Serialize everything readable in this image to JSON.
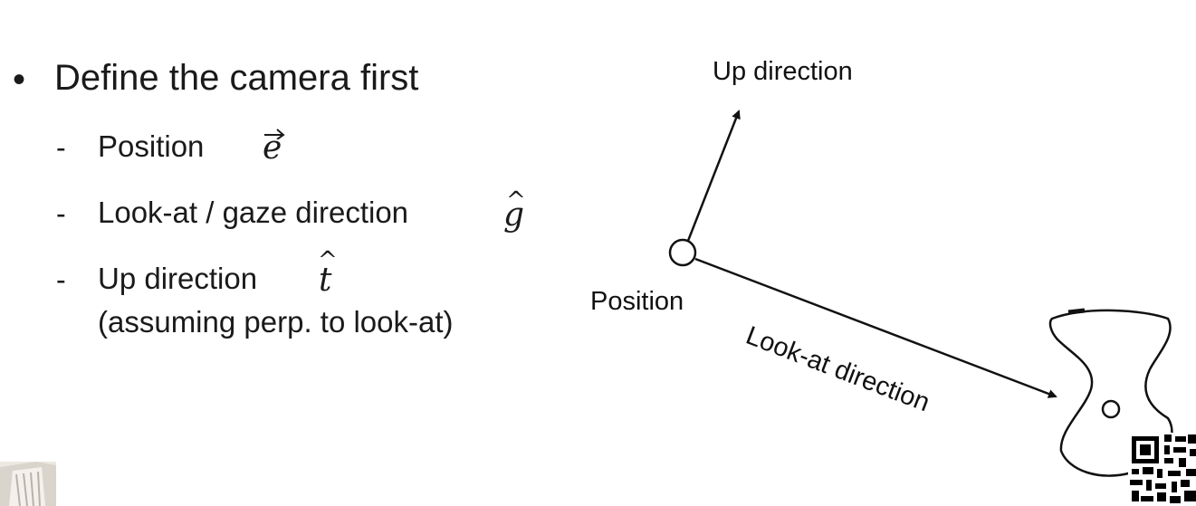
{
  "slide": {
    "main_point": "Define the camera first",
    "items": [
      {
        "label": "Position",
        "symbol": "e"
      },
      {
        "label": "Look-at / gaze direction",
        "symbol": "g"
      },
      {
        "label": "Up direction",
        "symbol": "t",
        "note": "(assuming perp. to look-at)"
      }
    ]
  },
  "diagram": {
    "up_label": "Up direction",
    "position_label": "Position",
    "lookat_label": "Look-at direction"
  },
  "colors": {
    "text": "#1a1a1a",
    "stroke": "#111111",
    "background": "#ffffff"
  }
}
